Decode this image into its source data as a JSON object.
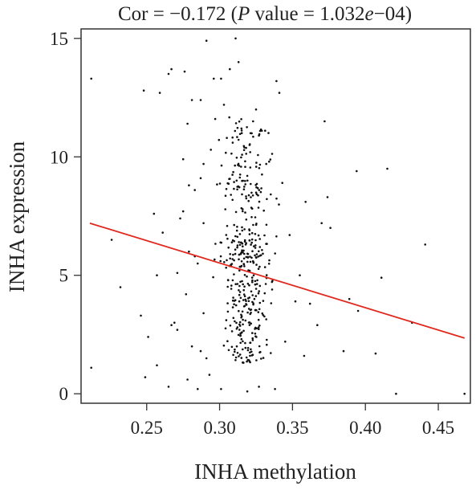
{
  "chart_data": {
    "type": "scatter",
    "title": {
      "cor_label": "Cor = ",
      "cor_value": "−0.172",
      "open_paren": " (",
      "p_symbol": "P",
      "p_label": " value = 1.032",
      "exp_e": "e",
      "exp_value": "−04)"
    },
    "xlabel": "INHA methylation",
    "ylabel": "INHA expression",
    "xlim": [
      0.205,
      0.472
    ],
    "ylim": [
      -0.4,
      15.4
    ],
    "x_ticks": [
      0.25,
      0.3,
      0.35,
      0.4,
      0.45
    ],
    "x_tick_labels": [
      "0.25",
      "0.30",
      "0.35",
      "0.40",
      "0.45"
    ],
    "y_ticks": [
      0,
      5,
      10,
      15
    ],
    "y_tick_labels": [
      "0",
      "5",
      "10",
      "15"
    ],
    "grid": false,
    "point_color": "#111111",
    "fit_line": {
      "color": "#e0281e",
      "x": [
        0.211,
        0.468
      ],
      "y": [
        7.2,
        2.35
      ]
    },
    "x_cluster": {
      "center": 0.318,
      "spread": 0.014
    },
    "series": [
      {
        "name": "",
        "points": [
          [
            0.212,
            13.3
          ],
          [
            0.212,
            1.1
          ],
          [
            0.226,
            6.5
          ],
          [
            0.232,
            4.5
          ],
          [
            0.246,
            3.3
          ],
          [
            0.248,
            12.8
          ],
          [
            0.251,
            2.4
          ],
          [
            0.255,
            7.6
          ],
          [
            0.257,
            1.2
          ],
          [
            0.259,
            12.7
          ],
          [
            0.261,
            6.8
          ],
          [
            0.265,
            13.5
          ],
          [
            0.267,
            13.7
          ],
          [
            0.269,
            3.0
          ],
          [
            0.271,
            2.7
          ],
          [
            0.273,
            7.4
          ],
          [
            0.275,
            9.9
          ],
          [
            0.276,
            13.6
          ],
          [
            0.278,
            11.4
          ],
          [
            0.279,
            6.0
          ],
          [
            0.281,
            12.4
          ],
          [
            0.283,
            5.8
          ],
          [
            0.287,
            12.4
          ],
          [
            0.289,
            3.4
          ],
          [
            0.291,
            14.9
          ],
          [
            0.294,
            10.3
          ],
          [
            0.296,
            13.3
          ],
          [
            0.297,
            11.6
          ],
          [
            0.301,
            13.3
          ],
          [
            0.303,
            12.2
          ],
          [
            0.305,
            10.8
          ],
          [
            0.307,
            13.7
          ],
          [
            0.309,
            10.6
          ],
          [
            0.311,
            15.0
          ],
          [
            0.313,
            14.0
          ],
          [
            0.315,
            11.2
          ],
          [
            0.317,
            10.4
          ],
          [
            0.319,
            9.2
          ],
          [
            0.321,
            10.2
          ],
          [
            0.323,
            11.5
          ],
          [
            0.325,
            12.0
          ],
          [
            0.327,
            10.9
          ],
          [
            0.329,
            11.1
          ],
          [
            0.332,
            9.7
          ],
          [
            0.334,
            9.8
          ],
          [
            0.336,
            4.4
          ],
          [
            0.339,
            13.2
          ],
          [
            0.341,
            12.7
          ],
          [
            0.343,
            8.9
          ],
          [
            0.345,
            2.2
          ],
          [
            0.348,
            6.7
          ],
          [
            0.352,
            3.9
          ],
          [
            0.355,
            5.0
          ],
          [
            0.358,
            1.6
          ],
          [
            0.359,
            8.1
          ],
          [
            0.362,
            3.8
          ],
          [
            0.367,
            2.9
          ],
          [
            0.37,
            7.2
          ],
          [
            0.372,
            11.5
          ],
          [
            0.374,
            8.3
          ],
          [
            0.376,
            7.0
          ],
          [
            0.385,
            1.8
          ],
          [
            0.389,
            4.0
          ],
          [
            0.394,
            9.4
          ],
          [
            0.395,
            3.5
          ],
          [
            0.407,
            1.7
          ],
          [
            0.411,
            4.9
          ],
          [
            0.415,
            9.5
          ],
          [
            0.421,
            0.0
          ],
          [
            0.432,
            3.0
          ],
          [
            0.441,
            6.3
          ],
          [
            0.468,
            0.0
          ],
          [
            0.249,
            0.7
          ],
          [
            0.265,
            0.3
          ],
          [
            0.278,
            0.6
          ],
          [
            0.285,
            0.2
          ],
          [
            0.293,
            0.8
          ],
          [
            0.301,
            0.2
          ],
          [
            0.319,
            0.1
          ],
          [
            0.327,
            0.3
          ],
          [
            0.338,
            0.2
          ],
          [
            0.257,
            5.0
          ],
          [
            0.267,
            2.9
          ],
          [
            0.271,
            5.1
          ],
          [
            0.277,
            4.2
          ],
          [
            0.281,
            2.0
          ],
          [
            0.285,
            5.5
          ],
          [
            0.287,
            1.8
          ],
          [
            0.289,
            7.2
          ],
          [
            0.291,
            1.5
          ],
          [
            0.275,
            7.7
          ],
          [
            0.279,
            8.8
          ],
          [
            0.283,
            8.6
          ],
          [
            0.287,
            9.1
          ],
          [
            0.289,
            9.7
          ]
        ]
      }
    ]
  }
}
